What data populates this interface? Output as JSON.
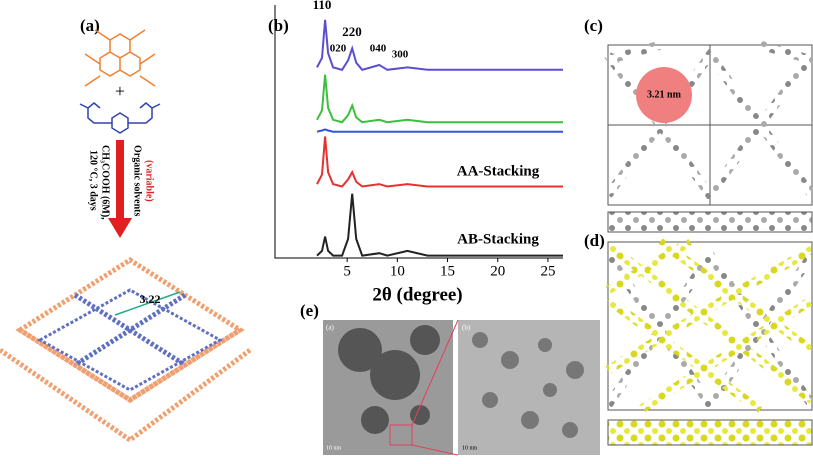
{
  "panels": {
    "a": {
      "label": "(a)",
      "plus": "+",
      "solvent": "Organic solvents",
      "variable": "(variable)",
      "acid": "CH₃COOH (6M),",
      "temp": "120 °C, 3 days",
      "pore": "3.22"
    },
    "c": {
      "label": "(c)",
      "pore": "3.21 nm"
    },
    "d": {
      "label": "(d)"
    },
    "e": {
      "label": "(e)",
      "left_label": "(a)",
      "right_label": "(b)",
      "scale": "10 nm"
    }
  },
  "chart_data": {
    "type": "line",
    "title": "(b)",
    "xlabel": "2θ (degree)",
    "x": [
      2,
      2.5,
      2.8,
      3.1,
      3.6,
      4.5,
      5.1,
      5.5,
      5.9,
      6.5,
      8.2,
      9,
      11,
      13,
      20,
      23,
      26.5
    ],
    "xlim": [
      1.5,
      26.5
    ],
    "xticks": [
      5,
      10,
      15,
      20,
      25
    ],
    "ylim": [
      0,
      102
    ],
    "series": [
      {
        "color": "#5b4fd0",
        "values": [
          80,
          84,
          100,
          86,
          80,
          79,
          83,
          88,
          82,
          79,
          81,
          79,
          80,
          79,
          79,
          79,
          79
        ]
      },
      {
        "color": "#3cc03c",
        "values": [
          58,
          62,
          77,
          63,
          58,
          57,
          60,
          64,
          59,
          57,
          58,
          57,
          58,
          57,
          57,
          57,
          57
        ]
      },
      {
        "color": "#3355dd",
        "values": [
          53,
          53.5,
          54,
          53.5,
          53,
          53,
          53,
          53,
          53,
          53,
          53,
          53,
          53,
          53,
          53,
          53,
          53
        ]
      },
      {
        "color": "#e83030",
        "values": [
          31,
          35,
          51,
          36,
          31,
          30,
          33,
          36,
          32,
          30,
          31,
          30,
          31,
          30,
          30,
          30,
          30
        ]
      },
      {
        "color": "#222222",
        "values": [
          1,
          3,
          9,
          3,
          1,
          1,
          8,
          27,
          8,
          1,
          2,
          1,
          3,
          1,
          1,
          1,
          1
        ]
      }
    ],
    "annotations": [
      "110",
      "020",
      "220",
      "040",
      "300",
      "AA-Stacking",
      "AB-Stacking"
    ]
  }
}
